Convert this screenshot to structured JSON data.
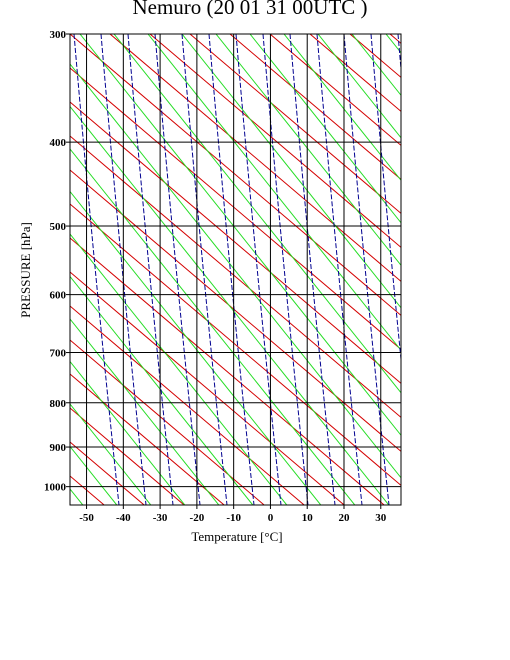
{
  "chart_data": {
    "type": "emagram",
    "title": "Nemuro (20 01 31 00UTC )",
    "x_label": "Temperature  [°C]",
    "y_label": "PRESSURE [hPa]",
    "xlim": [
      -54.5,
      35.5
    ],
    "xticks": [
      -50,
      -40,
      -30,
      -20,
      -10,
      0,
      10,
      20,
      30
    ],
    "ylim": [
      300,
      1050
    ],
    "yticks": [
      300,
      400,
      500,
      600,
      700,
      800,
      900,
      1000
    ],
    "y_scale": "log",
    "grid": true,
    "colors": {
      "dry_adiabat": "#d40000",
      "moist_adiabat": "#22dd22",
      "mixing_ratio": "#000090",
      "grid": "#000000"
    }
  }
}
